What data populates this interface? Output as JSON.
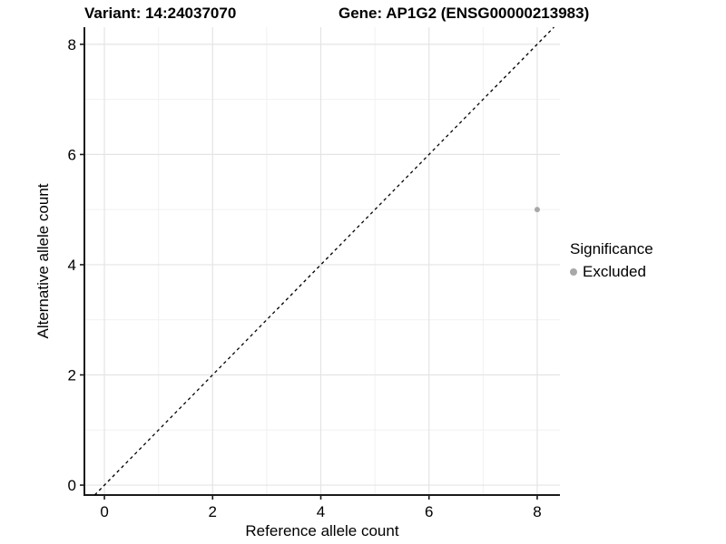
{
  "figure": {
    "title_left": "Variant: 14:24037070",
    "title_right": "Gene: AP1G2 (ENSG00000213983)"
  },
  "legend": {
    "title": "Significance",
    "position": "right",
    "items": [
      {
        "label": "Excluded",
        "marker": "circle",
        "color": "#a8a8a8"
      }
    ]
  },
  "chart_data": {
    "type": "scatter",
    "title": "Variant: 14:24037070   Gene: AP1G2 (ENSG00000213983)",
    "xlabel": "Reference allele count",
    "ylabel": "Alternative allele count",
    "xlim": [
      -0.37,
      8.42
    ],
    "ylim": [
      -0.18,
      8.31
    ],
    "x_ticks": [
      0,
      2,
      4,
      6,
      8
    ],
    "y_ticks": [
      0,
      2,
      4,
      6,
      8
    ],
    "x_minor_ticks": [
      1,
      3,
      5,
      7
    ],
    "y_minor_ticks": [
      1,
      3,
      5,
      7
    ],
    "grid": true,
    "legend_position": "right",
    "series": [
      {
        "name": "Excluded",
        "color": "#a8a8a8",
        "points": [
          {
            "x": 8,
            "y": 5
          }
        ]
      }
    ],
    "reference_line": {
      "type": "identity",
      "equation": "y = x",
      "style": "dashed",
      "color": "#000000"
    }
  },
  "colors": {
    "background": "#ffffff",
    "text": "#000000",
    "axis_line": "#1a1a1a",
    "grid_major": "#e4e4e4",
    "grid_minor": "#f1f1f1",
    "point": "#a8a8a8",
    "dashed_line": "#000000"
  }
}
